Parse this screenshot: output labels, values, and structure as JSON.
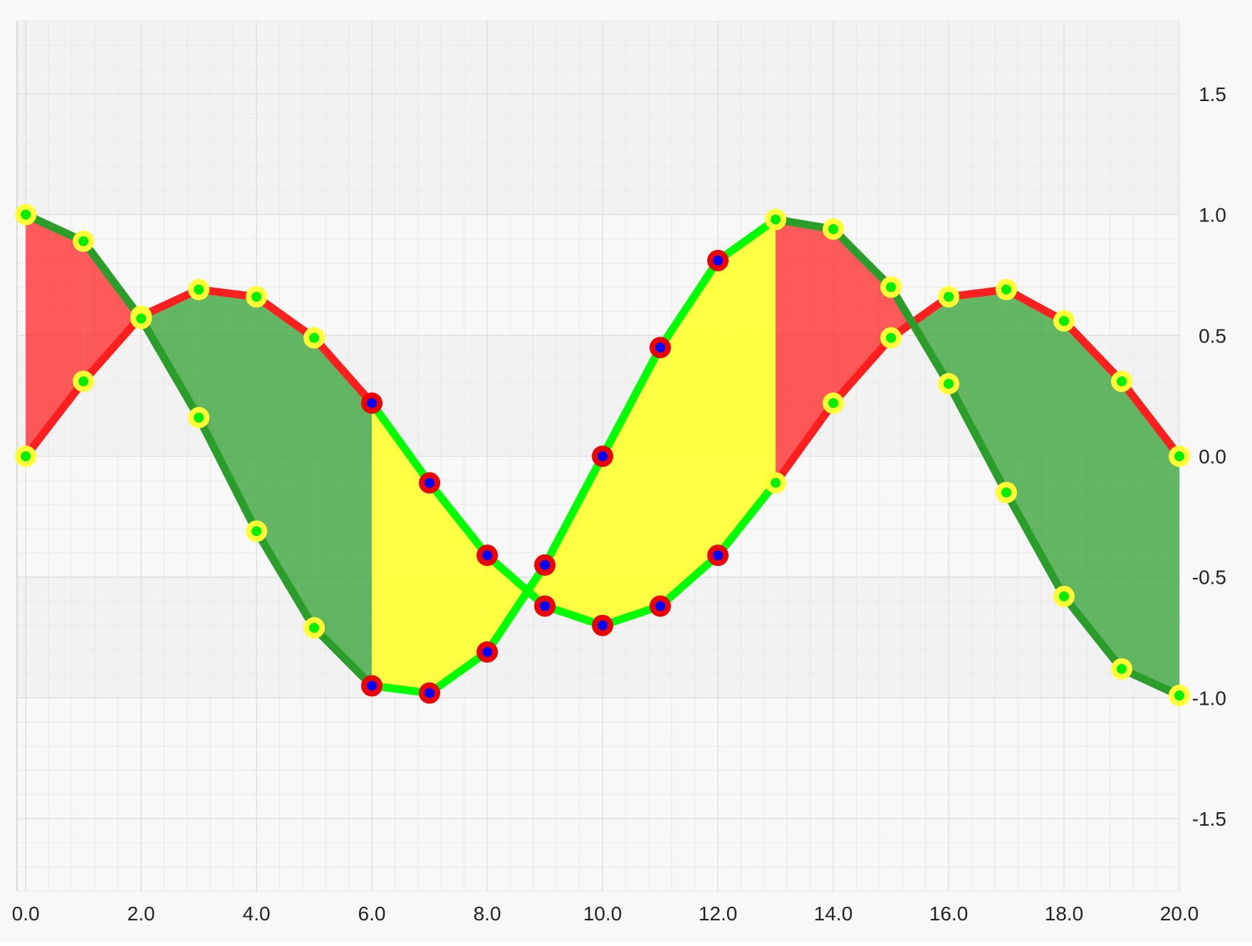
{
  "colors": {
    "page_background": "#f8f8f8",
    "plot_band_light": "#f8f8f8",
    "plot_band_dark": "#f2f2f2",
    "major_grid": "#d8d8d8",
    "minor_grid": "#e8e8e8",
    "tick_label": "#222222"
  },
  "chart_data": {
    "type": "line",
    "title": "",
    "xlabel": "",
    "ylabel": "",
    "xlim": [
      -0.15,
      20.0
    ],
    "ylim": [
      -1.8,
      1.8
    ],
    "x_ticks": [
      0,
      2,
      4,
      6,
      8,
      10,
      12,
      14,
      16,
      18,
      20
    ],
    "x_tick_labels": [
      "0.0",
      "2.0",
      "4.0",
      "6.0",
      "8.0",
      "10.0",
      "12.0",
      "14.0",
      "16.0",
      "18.0",
      "20.0"
    ],
    "y_ticks": [
      1.5,
      1.0,
      0.5,
      0.0,
      -0.5,
      -1.0,
      -1.5
    ],
    "y_tick_labels": [
      "1.5",
      "1.0",
      "0.5",
      "0.0",
      "-0.5",
      "-1.0",
      "-1.5"
    ],
    "y_axis_position": "right",
    "grid": true,
    "x": [
      0,
      1,
      2,
      3,
      4,
      5,
      6,
      7,
      8,
      9,
      10,
      11,
      12,
      13,
      14,
      15,
      16,
      17,
      18,
      19,
      20
    ],
    "series": [
      {
        "values": [
          0.0,
          0.31,
          0.58,
          0.69,
          0.66,
          0.49,
          0.22,
          -0.11,
          -0.41,
          -0.62,
          -0.7,
          -0.62,
          -0.41,
          -0.11,
          0.22,
          0.49,
          0.66,
          0.69,
          0.56,
          0.31,
          0.0
        ],
        "normal_line_color": "#ff1f1f",
        "alt_line_color": "#00ff00",
        "normal_marker_fill": "#00ee00",
        "normal_marker_stroke": "#ffff33",
        "alt_marker_fill": "#0000ff",
        "alt_marker_stroke": "#ee0000"
      },
      {
        "values": [
          1.0,
          0.89,
          0.57,
          0.16,
          -0.31,
          -0.71,
          -0.95,
          -0.98,
          -0.81,
          -0.45,
          0.0,
          0.45,
          0.81,
          0.98,
          0.94,
          0.7,
          0.3,
          -0.15,
          -0.58,
          -0.88,
          -0.99
        ],
        "normal_line_color": "#2a9d2a",
        "alt_line_color": "#00ff00",
        "normal_marker_fill": "#00ee00",
        "normal_marker_stroke": "#ffff33",
        "alt_marker_fill": "#0000ff",
        "alt_marker_stroke": "#ee0000"
      }
    ],
    "alternate_style_x_range": [
      6,
      13
    ],
    "band_fill": {
      "series_1_above": "rgba(42,157,42,0.72)",
      "series_1_below": "rgba(255,40,40,0.76)",
      "alternate_range": "rgba(255,255,51,0.92)"
    }
  }
}
